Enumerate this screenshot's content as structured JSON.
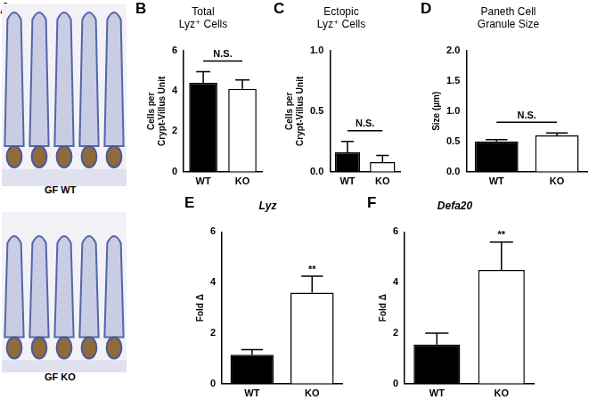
{
  "image_panel": {
    "panel_label": "A",
    "images": [
      "GF WT",
      "GF KO"
    ]
  },
  "chart_data": [
    {
      "type": "bar",
      "panel_label": "B",
      "title": [
        "Total",
        "Lyz⁺ Cells"
      ],
      "y_label": [
        "Cells per",
        "Crypt-Villus Unit"
      ],
      "categories": [
        "WT",
        "KO"
      ],
      "values": [
        4.4,
        4.1
      ],
      "errors": [
        0.55,
        0.45
      ],
      "colors": [
        "#000000",
        "#ffffff"
      ],
      "ylim": [
        0,
        6
      ],
      "yticks": [
        0,
        2,
        4,
        6
      ],
      "grid": false,
      "annotations": [
        {
          "text": "N.S.",
          "categories": [
            "WT",
            "KO"
          ]
        }
      ]
    },
    {
      "type": "bar",
      "panel_label": "C",
      "title": [
        "Ectopic",
        "Lyz⁺ Cells"
      ],
      "y_label": [
        "Cells per",
        "Crypt-Villus Unit"
      ],
      "categories": [
        "WT",
        "KO"
      ],
      "values": [
        0.16,
        0.08
      ],
      "errors": [
        0.09,
        0.055
      ],
      "colors": [
        "#000000",
        "#ffffff"
      ],
      "ylim": [
        0,
        1
      ],
      "yticks": [
        {
          "value": 0,
          "label": "0.0"
        },
        {
          "value": 0.5,
          "label": "0.5"
        },
        {
          "value": 1,
          "label": "1.0"
        }
      ],
      "grid": false,
      "annotations": [
        {
          "text": "N.S.",
          "categories": [
            "WT",
            "KO"
          ]
        }
      ]
    },
    {
      "type": "bar",
      "panel_label": "D",
      "title": [
        "Paneth Cell",
        "Granule Size"
      ],
      "y_label": [
        "Size (µm)"
      ],
      "categories": [
        "WT",
        "KO"
      ],
      "values": [
        0.5,
        0.6
      ],
      "errors": [
        0.03,
        0.04
      ],
      "colors": [
        "#000000",
        "#ffffff"
      ],
      "ylim": [
        0,
        2
      ],
      "yticks": [
        {
          "value": 0,
          "label": "0.0"
        },
        {
          "value": 0.5,
          "label": "0.5"
        },
        {
          "value": 1,
          "label": "1.0"
        },
        {
          "value": 1.5,
          "label": "1.5"
        },
        {
          "value": 2,
          "label": "2.0"
        }
      ],
      "grid": false,
      "annotations": [
        {
          "text": "N.S.",
          "categories": [
            "WT",
            "KO"
          ]
        }
      ]
    },
    {
      "type": "bar",
      "panel_label": "E",
      "title": [
        "Lyz"
      ],
      "y_label": [
        "Fold Δ"
      ],
      "categories": [
        "WT",
        "KO"
      ],
      "values": [
        1.15,
        3.6
      ],
      "errors": [
        0.2,
        0.65
      ],
      "colors": [
        "#000000",
        "#ffffff"
      ],
      "ylim": [
        0,
        6
      ],
      "yticks": [
        0,
        2,
        4,
        6
      ],
      "grid": false,
      "annotations": [
        {
          "text": "**",
          "categories": [
            "KO"
          ]
        }
      ]
    },
    {
      "type": "bar",
      "panel_label": "F",
      "title": [
        "Defa20"
      ],
      "y_label": [
        "Fold Δ"
      ],
      "categories": [
        "WT",
        "KO"
      ],
      "values": [
        1.55,
        4.5
      ],
      "errors": [
        0.45,
        1.1
      ],
      "colors": [
        "#000000",
        "#ffffff"
      ],
      "ylim": [
        0,
        6
      ],
      "yticks": [
        0,
        2,
        4,
        6
      ],
      "grid": false,
      "annotations": [
        {
          "text": "**",
          "categories": [
            "KO"
          ]
        }
      ]
    }
  ]
}
